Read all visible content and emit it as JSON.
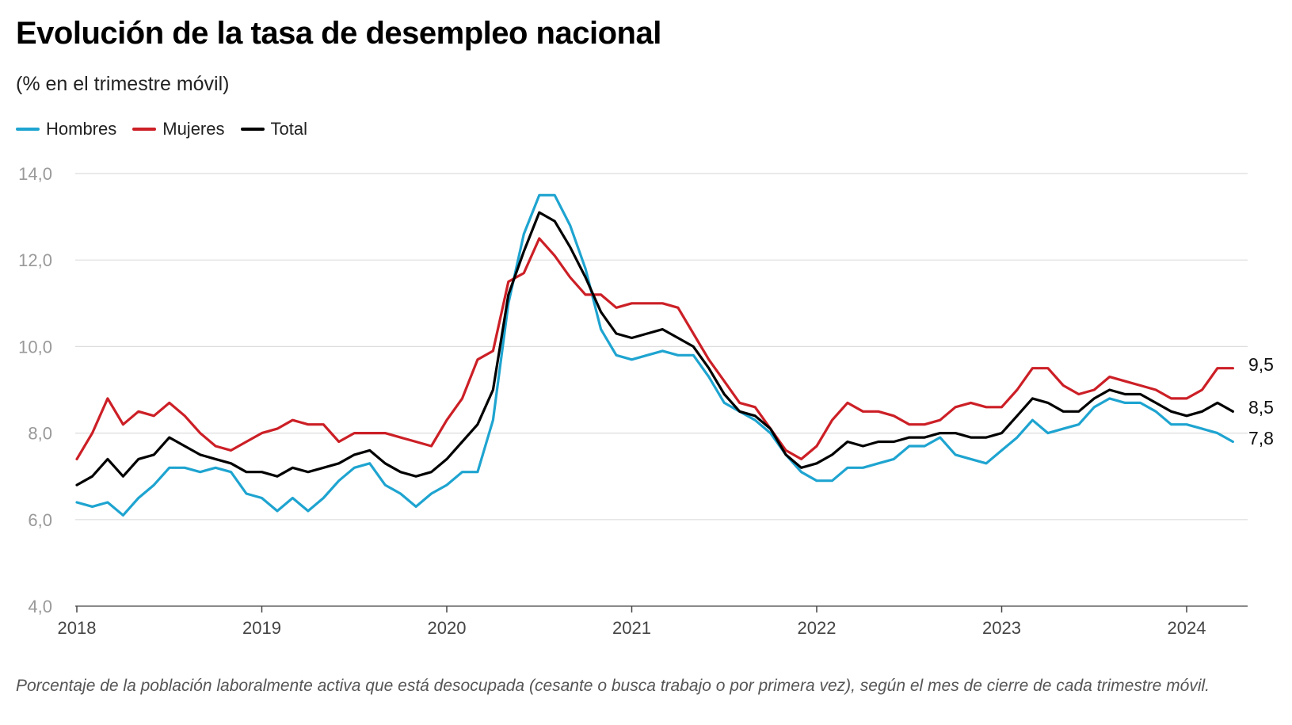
{
  "title": "Evolución de la tasa de desempleo nacional",
  "subtitle": "(% en el trimestre móvil)",
  "note": "Porcentaje de la población laboralmente activa que está desocupada (cesante o busca trabajo o por primera vez), según el mes de cierre de cada trimestre móvil.",
  "legend": [
    {
      "name": "Hombres",
      "color": "#1ea4d0"
    },
    {
      "name": "Mujeres",
      "color": "#cc1f26"
    },
    {
      "name": "Total",
      "color": "#000000"
    }
  ],
  "chart_data": {
    "type": "line",
    "title": "Evolución de la tasa de desempleo nacional",
    "subtitle": "(% en el trimestre móvil)",
    "xlabel": "",
    "ylabel": "",
    "ylim": [
      4,
      14
    ],
    "yticks": [
      "4,0",
      "6,0",
      "8,0",
      "10,0",
      "12,0",
      "14,0"
    ],
    "ytick_values": [
      4,
      6,
      8,
      10,
      12,
      14
    ],
    "xticks": [
      "2018",
      "2019",
      "2020",
      "2021",
      "2022",
      "2023",
      "2024"
    ],
    "x_start": "2018-01",
    "grid": true,
    "legend_position": "top-left",
    "end_labels": {
      "Mujeres": "9,5",
      "Total": "8,5",
      "Hombres": "7,8"
    },
    "series": [
      {
        "name": "Hombres",
        "color": "#1ea4d0",
        "values": [
          6.4,
          6.3,
          6.4,
          6.1,
          6.5,
          6.8,
          7.2,
          7.2,
          7.1,
          7.2,
          7.1,
          6.6,
          6.5,
          6.2,
          6.5,
          6.2,
          6.5,
          6.9,
          7.2,
          7.3,
          6.8,
          6.6,
          6.3,
          6.6,
          6.8,
          7.1,
          7.1,
          8.3,
          11.0,
          12.6,
          13.5,
          13.5,
          12.8,
          11.8,
          10.4,
          9.8,
          9.7,
          9.8,
          9.9,
          9.8,
          9.8,
          9.3,
          8.7,
          8.5,
          8.3,
          8.0,
          7.5,
          7.1,
          6.9,
          6.9,
          7.2,
          7.2,
          7.3,
          7.4,
          7.7,
          7.7,
          7.9,
          7.5,
          7.4,
          7.3,
          7.6,
          7.9,
          8.3,
          8.0,
          8.1,
          8.2,
          8.6,
          8.8,
          8.7,
          8.7,
          8.5,
          8.2,
          8.2,
          8.1,
          8.0,
          7.8
        ]
      },
      {
        "name": "Mujeres",
        "color": "#cc1f26",
        "values": [
          7.4,
          8.0,
          8.8,
          8.2,
          8.5,
          8.4,
          8.7,
          8.4,
          8.0,
          7.7,
          7.6,
          7.8,
          8.0,
          8.1,
          8.3,
          8.2,
          8.2,
          7.8,
          8.0,
          8.0,
          8.0,
          7.9,
          7.8,
          7.7,
          8.3,
          8.8,
          9.7,
          9.9,
          11.5,
          11.7,
          12.5,
          12.1,
          11.6,
          11.2,
          11.2,
          10.9,
          11.0,
          11.0,
          11.0,
          10.9,
          10.3,
          9.7,
          9.2,
          8.7,
          8.6,
          8.1,
          7.6,
          7.4,
          7.7,
          8.3,
          8.7,
          8.5,
          8.5,
          8.4,
          8.2,
          8.2,
          8.3,
          8.6,
          8.7,
          8.6,
          8.6,
          9.0,
          9.5,
          9.5,
          9.1,
          8.9,
          9.0,
          9.3,
          9.2,
          9.1,
          9.0,
          8.8,
          8.8,
          9.0,
          9.5,
          9.5
        ]
      },
      {
        "name": "Total",
        "color": "#000000",
        "values": [
          6.8,
          7.0,
          7.4,
          7.0,
          7.4,
          7.5,
          7.9,
          7.7,
          7.5,
          7.4,
          7.3,
          7.1,
          7.1,
          7.0,
          7.2,
          7.1,
          7.2,
          7.3,
          7.5,
          7.6,
          7.3,
          7.1,
          7.0,
          7.1,
          7.4,
          7.8,
          8.2,
          9.0,
          11.2,
          12.2,
          13.1,
          12.9,
          12.3,
          11.6,
          10.8,
          10.3,
          10.2,
          10.3,
          10.4,
          10.2,
          10.0,
          9.5,
          8.9,
          8.5,
          8.4,
          8.1,
          7.5,
          7.2,
          7.3,
          7.5,
          7.8,
          7.7,
          7.8,
          7.8,
          7.9,
          7.9,
          8.0,
          8.0,
          7.9,
          7.9,
          8.0,
          8.4,
          8.8,
          8.7,
          8.5,
          8.5,
          8.8,
          9.0,
          8.9,
          8.9,
          8.7,
          8.5,
          8.4,
          8.5,
          8.7,
          8.5
        ]
      }
    ]
  }
}
